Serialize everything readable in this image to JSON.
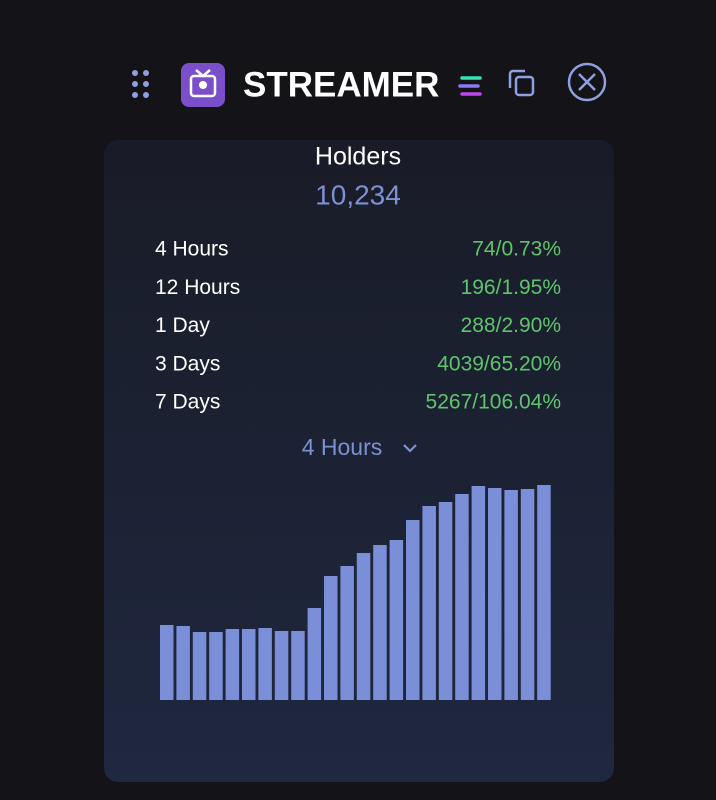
{
  "header": {
    "title": "STREAMER"
  },
  "holders": {
    "label": "Holders",
    "value": "10,234"
  },
  "rows": [
    {
      "label": "4 Hours",
      "value": "74/0.73%"
    },
    {
      "label": "12 Hours",
      "value": "196/1.95%"
    },
    {
      "label": "1 Day",
      "value": "288/2.90%"
    },
    {
      "label": "3 Days",
      "value": "4039/65.20%"
    },
    {
      "label": "7 Days",
      "value": "5267/106.04%"
    }
  ],
  "dropdown": {
    "label": "4 Hours"
  },
  "chart_data": {
    "type": "bar",
    "color": "#7b8fd8",
    "ylim": [
      0,
      230
    ],
    "values": [
      75,
      74,
      68,
      68,
      71,
      71,
      72,
      69,
      69,
      92,
      124,
      134,
      147,
      155,
      160,
      180,
      194,
      198,
      206,
      214,
      212,
      210,
      211,
      215
    ]
  }
}
